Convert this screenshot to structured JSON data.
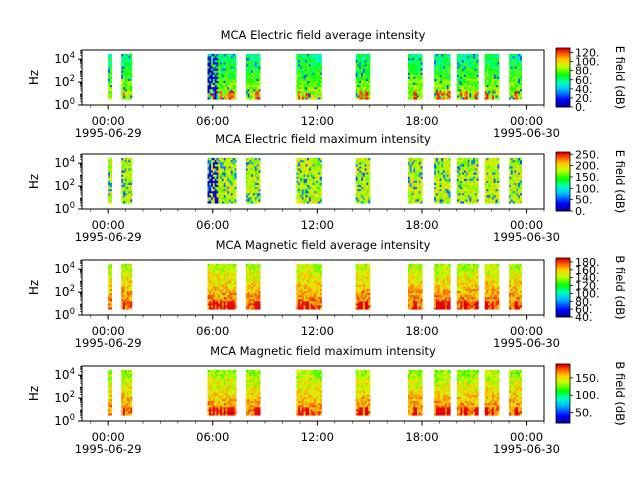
{
  "chart_data": [
    {
      "type": "heatmap",
      "title": "MCA  Electric field average intensity",
      "ylabel": "Hz",
      "yscale": "log",
      "ylim_log10": [
        0,
        4.8
      ],
      "y_ticks": [
        {
          "exp": 0,
          "base": "10",
          "pow": "0"
        },
        {
          "exp": 2,
          "base": "10",
          "pow": "2"
        },
        {
          "exp": 4,
          "base": "10",
          "pow": "4"
        }
      ],
      "xlim_hours": [
        -1.5,
        25
      ],
      "x_ticks": [
        {
          "label": "00:00",
          "hour": 0
        },
        {
          "label": "06:00",
          "hour": 6
        },
        {
          "label": "12:00",
          "hour": 12
        },
        {
          "label": "18:00",
          "hour": 18
        },
        {
          "label": "00:00",
          "hour": 24
        }
      ],
      "x_dates": [
        {
          "label": "1995-06-29",
          "hour": 0
        },
        {
          "label": "1995-06-30",
          "hour": 24
        }
      ],
      "colorbar": {
        "label": "E field (dB)",
        "range": [
          0,
          130
        ],
        "ticks": [
          {
            "v": 0,
            "label": "0."
          },
          {
            "v": 20,
            "label": "20."
          },
          {
            "v": 40,
            "label": "40."
          },
          {
            "v": 60,
            "label": "60."
          },
          {
            "v": 80,
            "label": "80."
          },
          {
            "v": 100,
            "label": "100."
          },
          {
            "v": 120,
            "label": "120."
          }
        ]
      },
      "base_level": 55,
      "high_low": true,
      "dark_blobs": true,
      "segments_hours": [
        [
          0.0,
          0.1
        ],
        [
          0.75,
          1.3
        ],
        [
          5.7,
          7.3
        ],
        [
          7.9,
          8.7
        ],
        [
          10.8,
          12.2
        ],
        [
          14.2,
          15.0
        ],
        [
          17.2,
          18.0
        ],
        [
          18.7,
          19.6
        ],
        [
          20.0,
          21.2
        ],
        [
          21.6,
          22.4
        ],
        [
          23.0,
          23.7
        ]
      ]
    },
    {
      "type": "heatmap",
      "title": "MCA  Electric field maximum intensity",
      "ylabel": "Hz",
      "yscale": "log",
      "ylim_log10": [
        0,
        4.8
      ],
      "y_ticks": [
        {
          "exp": 0,
          "base": "10",
          "pow": "0"
        },
        {
          "exp": 2,
          "base": "10",
          "pow": "2"
        },
        {
          "exp": 4,
          "base": "10",
          "pow": "4"
        }
      ],
      "xlim_hours": [
        -1.5,
        25
      ],
      "x_ticks": [
        {
          "label": "00:00",
          "hour": 0
        },
        {
          "label": "06:00",
          "hour": 6
        },
        {
          "label": "12:00",
          "hour": 12
        },
        {
          "label": "18:00",
          "hour": 18
        },
        {
          "label": "00:00",
          "hour": 24
        }
      ],
      "x_dates": [
        {
          "label": "1995-06-29",
          "hour": 0
        },
        {
          "label": "1995-06-30",
          "hour": 24
        }
      ],
      "colorbar": {
        "label": "E field (dB)",
        "range": [
          0,
          260
        ],
        "ticks": [
          {
            "v": 0,
            "label": "0."
          },
          {
            "v": 50,
            "label": "50."
          },
          {
            "v": 100,
            "label": "100."
          },
          {
            "v": 150,
            "label": "150."
          },
          {
            "v": 200,
            "label": "200."
          },
          {
            "v": 250,
            "label": "250."
          }
        ]
      },
      "base_level": 80,
      "high_low": false,
      "dark_blobs": true,
      "segments_hours": [
        [
          0.0,
          0.1
        ],
        [
          0.75,
          1.3
        ],
        [
          5.7,
          7.3
        ],
        [
          7.9,
          8.7
        ],
        [
          10.8,
          12.2
        ],
        [
          14.2,
          15.0
        ],
        [
          17.2,
          18.0
        ],
        [
          18.7,
          19.6
        ],
        [
          20.0,
          21.2
        ],
        [
          21.6,
          22.4
        ],
        [
          23.0,
          23.7
        ]
      ]
    },
    {
      "type": "heatmap",
      "title": "MCA  Magnetic field average intensity",
      "ylabel": "Hz",
      "yscale": "log",
      "ylim_log10": [
        0,
        4.8
      ],
      "y_ticks": [
        {
          "exp": 0,
          "base": "10",
          "pow": "0"
        },
        {
          "exp": 2,
          "base": "10",
          "pow": "2"
        },
        {
          "exp": 4,
          "base": "10",
          "pow": "4"
        }
      ],
      "xlim_hours": [
        -1.5,
        25
      ],
      "x_ticks": [
        {
          "label": "00:00",
          "hour": 0
        },
        {
          "label": "06:00",
          "hour": 6
        },
        {
          "label": "12:00",
          "hour": 12
        },
        {
          "label": "18:00",
          "hour": 18
        },
        {
          "label": "00:00",
          "hour": 24
        }
      ],
      "x_dates": [
        {
          "label": "1995-06-29",
          "hour": 0
        },
        {
          "label": "1995-06-30",
          "hour": 24
        }
      ],
      "colorbar": {
        "label": "B field (dB)",
        "range": [
          40,
          190
        ],
        "ticks": [
          {
            "v": 40,
            "label": "40."
          },
          {
            "v": 60,
            "label": "60."
          },
          {
            "v": 80,
            "label": "80."
          },
          {
            "v": 100,
            "label": "100."
          },
          {
            "v": 120,
            "label": "120."
          },
          {
            "v": 140,
            "label": "140."
          },
          {
            "v": 160,
            "label": "160."
          },
          {
            "v": 180,
            "label": "180."
          }
        ]
      },
      "base_level": 100,
      "high_low": true,
      "dark_blobs": false,
      "segments_hours": [
        [
          0.0,
          0.1
        ],
        [
          0.75,
          1.3
        ],
        [
          5.7,
          7.3
        ],
        [
          7.9,
          8.7
        ],
        [
          10.8,
          12.2
        ],
        [
          14.2,
          15.0
        ],
        [
          17.2,
          18.0
        ],
        [
          18.7,
          19.6
        ],
        [
          20.0,
          21.2
        ],
        [
          21.6,
          22.4
        ],
        [
          23.0,
          23.7
        ]
      ]
    },
    {
      "type": "heatmap",
      "title": "MCA  Magnetic field maximum intensity",
      "ylabel": "Hz",
      "yscale": "log",
      "ylim_log10": [
        0,
        4.8
      ],
      "y_ticks": [
        {
          "exp": 0,
          "base": "10",
          "pow": "0"
        },
        {
          "exp": 2,
          "base": "10",
          "pow": "2"
        },
        {
          "exp": 4,
          "base": "10",
          "pow": "4"
        }
      ],
      "xlim_hours": [
        -1.5,
        25
      ],
      "x_ticks": [
        {
          "label": "00:00",
          "hour": 0
        },
        {
          "label": "06:00",
          "hour": 6
        },
        {
          "label": "12:00",
          "hour": 12
        },
        {
          "label": "18:00",
          "hour": 18
        },
        {
          "label": "00:00",
          "hour": 24
        }
      ],
      "x_dates": [
        {
          "label": "1995-06-29",
          "hour": 0
        },
        {
          "label": "1995-06-30",
          "hour": 24
        }
      ],
      "colorbar": {
        "label": "B field (dB)",
        "range": [
          20,
          190
        ],
        "ticks": [
          {
            "v": 50,
            "label": "50."
          },
          {
            "v": 100,
            "label": "100."
          },
          {
            "v": 150,
            "label": "150."
          }
        ]
      },
      "base_level": 95,
      "high_low": true,
      "dark_blobs": false,
      "segments_hours": [
        [
          0.0,
          0.1
        ],
        [
          0.75,
          1.3
        ],
        [
          5.7,
          7.3
        ],
        [
          7.9,
          8.7
        ],
        [
          10.8,
          12.2
        ],
        [
          14.2,
          15.0
        ],
        [
          17.2,
          18.0
        ],
        [
          18.7,
          19.6
        ],
        [
          20.0,
          21.2
        ],
        [
          21.6,
          22.4
        ],
        [
          23.0,
          23.7
        ]
      ]
    }
  ]
}
